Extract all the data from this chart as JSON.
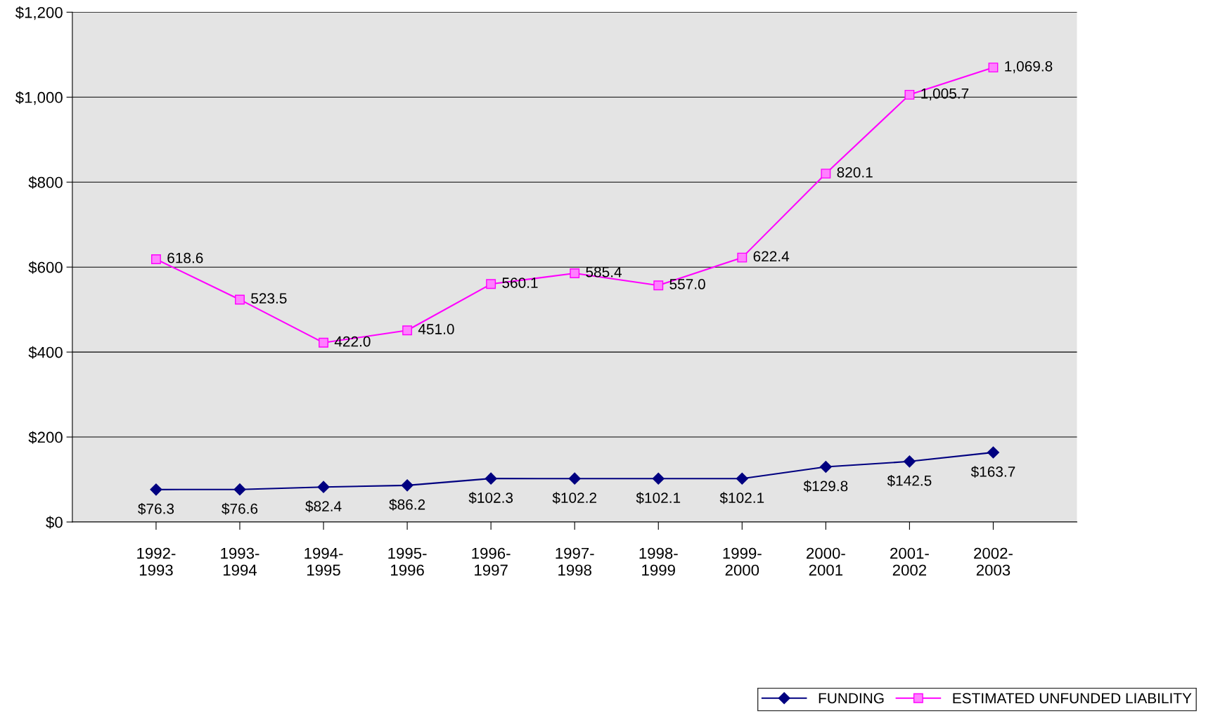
{
  "chart_data": {
    "type": "line",
    "categories": [
      "1992-\n1993",
      "1993-\n1994",
      "1994-\n1995",
      "1995-\n1996",
      "1996-\n1997",
      "1997-\n1998",
      "1998-\n1999",
      "1999-\n2000",
      "2000-\n2001",
      "2001-\n2002",
      "2002-\n2003"
    ],
    "series": [
      {
        "name": "FUNDING",
        "color": "#000080",
        "marker": "diamond",
        "values": [
          76.3,
          76.6,
          82.4,
          86.2,
          102.3,
          102.2,
          102.1,
          102.1,
          129.8,
          142.5,
          163.7
        ],
        "value_labels": [
          "$76.3",
          "$76.6",
          "$82.4",
          "$86.2",
          "$102.3",
          "$102.2",
          "$102.1",
          "$102.1",
          "$129.8",
          "$142.5",
          "$163.7"
        ]
      },
      {
        "name": "ESTIMATED UNFUNDED LIABILITY",
        "color": "#ff00ff",
        "marker": "square",
        "values": [
          618.6,
          523.5,
          422.0,
          451.0,
          560.1,
          585.4,
          557.0,
          622.4,
          820.1,
          1005.7,
          1069.8
        ],
        "value_labels": [
          "618.6",
          "523.5",
          "422.0",
          "451.0",
          "560.1",
          "585.4",
          "557.0",
          "622.4",
          "820.1",
          "1,005.7",
          "1,069.8"
        ]
      }
    ],
    "ylim": [
      0,
      1200
    ],
    "yticks": [
      {
        "value": 0,
        "label": "$0"
      },
      {
        "value": 200,
        "label": "$200"
      },
      {
        "value": 400,
        "label": "$400"
      },
      {
        "value": 600,
        "label": "$600"
      },
      {
        "value": 800,
        "label": "$800"
      },
      {
        "value": 1000,
        "label": "$1,000"
      },
      {
        "value": 1200,
        "label": "$1,200"
      }
    ],
    "grid": "y",
    "legend": "bottom right",
    "line_style": "solid"
  }
}
